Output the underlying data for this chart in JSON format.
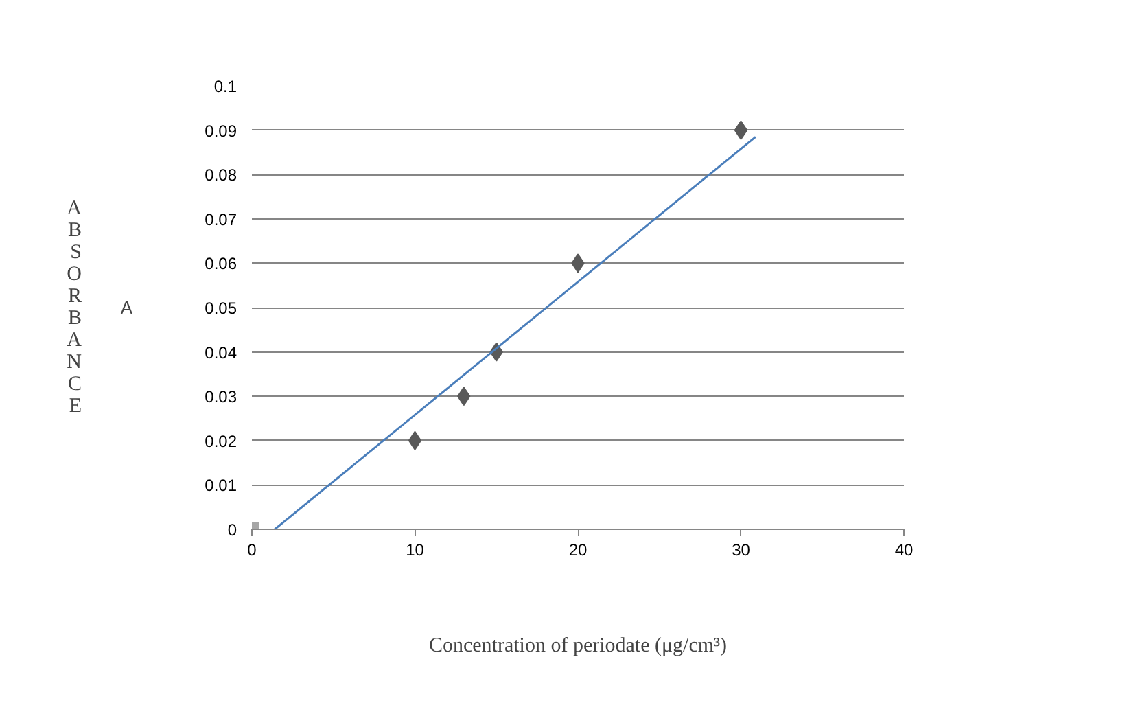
{
  "chart_data": {
    "type": "scatter",
    "xlabel": "Concentration of periodate (μg/cm³)",
    "ylabel": "ABSORBANCE",
    "annotations": [
      "A"
    ],
    "xlim": [
      0,
      40
    ],
    "ylim": [
      0,
      0.1
    ],
    "xticks": [
      0,
      10,
      20,
      30,
      40
    ],
    "yticks": [
      0,
      0.01,
      0.02,
      0.03,
      0.04,
      0.05,
      0.06,
      0.07,
      0.08,
      0.09,
      0.1
    ],
    "grid": "y",
    "series": [
      {
        "type": "scatter",
        "marker": "diamond",
        "color": "#595959",
        "x": [
          10,
          13,
          15,
          20,
          30
        ],
        "values": [
          0.02,
          0.03,
          0.04,
          0.06,
          0.09
        ]
      },
      {
        "type": "scatter",
        "marker": "square",
        "color": "#a6a6a6",
        "x": [
          0
        ],
        "values": [
          0
        ]
      },
      {
        "type": "line",
        "color": "#4a7ebb",
        "line_style": "solid",
        "x": [
          1.4,
          30.9
        ],
        "values": [
          0,
          0.0885
        ]
      }
    ]
  }
}
